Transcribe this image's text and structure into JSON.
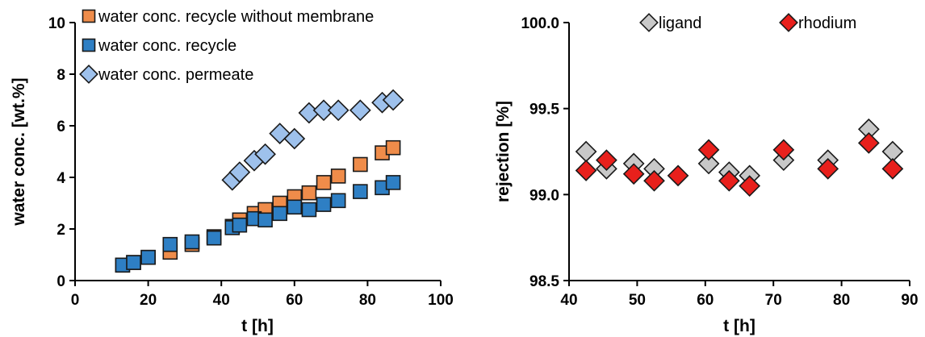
{
  "chart_data": [
    {
      "type": "scatter",
      "xlabel": "t [h]",
      "ylabel": "water conc. [wt.%]",
      "xlim": [
        0,
        100
      ],
      "ylim": [
        0,
        10
      ],
      "xticks": [
        "0",
        "20",
        "40",
        "60",
        "80",
        "100"
      ],
      "yticks": [
        "0",
        "2",
        "4",
        "6",
        "8",
        "10"
      ],
      "grid": false,
      "legend_position": "top-left",
      "series": [
        {
          "name": "water conc. recycle without membrane",
          "marker": "square",
          "color": "#ef8c4a",
          "x": [
            13,
            16,
            20,
            26,
            32,
            38,
            43,
            45,
            49,
            52,
            56,
            60,
            64,
            68,
            72,
            78,
            84,
            87
          ],
          "y": [
            0.6,
            0.7,
            0.9,
            1.1,
            1.4,
            1.7,
            2.1,
            2.35,
            2.6,
            2.75,
            3.0,
            3.25,
            3.4,
            3.8,
            4.05,
            4.5,
            4.95,
            5.15
          ]
        },
        {
          "name": "water conc. recycle",
          "marker": "square",
          "color": "#2e7fc4",
          "x": [
            13,
            16,
            20,
            26,
            32,
            38,
            43,
            45,
            49,
            52,
            56,
            60,
            64,
            68,
            72,
            78,
            84,
            87
          ],
          "y": [
            0.6,
            0.7,
            0.9,
            1.4,
            1.5,
            1.65,
            2.05,
            2.15,
            2.4,
            2.35,
            2.6,
            2.85,
            2.75,
            2.95,
            3.1,
            3.45,
            3.6,
            3.8
          ]
        },
        {
          "name": "water conc. permeate",
          "marker": "diamond",
          "color": "#9ec1ec",
          "x": [
            43,
            45,
            49,
            52,
            56,
            60,
            64,
            68,
            72,
            78,
            84,
            87
          ],
          "y": [
            3.9,
            4.2,
            4.65,
            4.9,
            5.7,
            5.5,
            6.5,
            6.6,
            6.6,
            6.6,
            6.9,
            7.0
          ]
        }
      ]
    },
    {
      "type": "scatter",
      "xlabel": "t [h]",
      "ylabel": "rejection [%]",
      "xlim": [
        40,
        90
      ],
      "ylim": [
        98.5,
        100.0
      ],
      "xticks": [
        "40",
        "50",
        "60",
        "70",
        "80",
        "90"
      ],
      "yticks": [
        "98.5",
        "99.0",
        "99.5",
        "100.0"
      ],
      "grid": false,
      "legend_position": "top",
      "series": [
        {
          "name": "ligand",
          "marker": "diamond",
          "color": "#c8c8c8",
          "x": [
            42.5,
            45.5,
            49.5,
            52.5,
            60.5,
            63.5,
            66.5,
            71.5,
            78,
            84,
            87.5
          ],
          "y": [
            99.25,
            99.15,
            99.18,
            99.15,
            99.18,
            99.13,
            99.11,
            99.2,
            99.2,
            99.38,
            99.25
          ]
        },
        {
          "name": "rhodium",
          "marker": "diamond",
          "color": "#e8201c",
          "x": [
            42.5,
            45.5,
            49.5,
            52.5,
            56,
            60.5,
            63.5,
            66.5,
            71.5,
            78,
            84,
            87.5
          ],
          "y": [
            99.14,
            99.2,
            99.12,
            99.08,
            99.11,
            99.26,
            99.08,
            99.05,
            99.26,
            99.15,
            99.3,
            99.15
          ]
        }
      ]
    }
  ]
}
